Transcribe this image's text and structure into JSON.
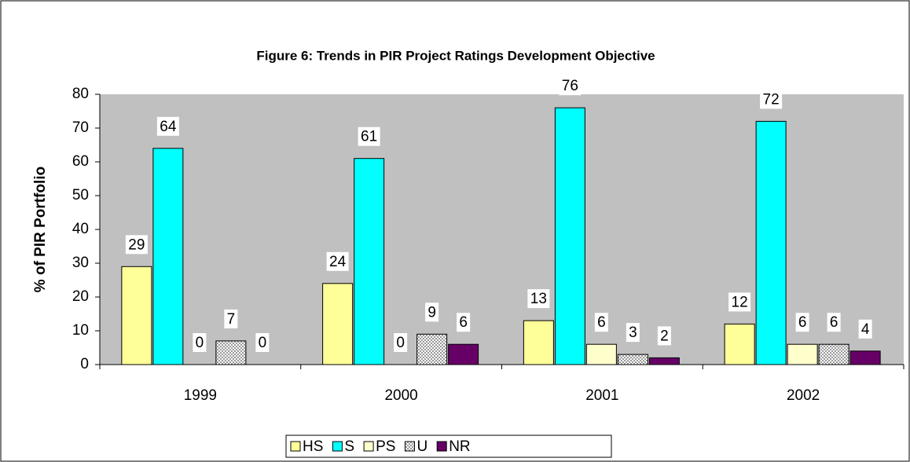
{
  "chart_data": {
    "type": "bar",
    "title": "Figure 6: Trends in PIR Project Ratings Development Objective",
    "y_label": "% of PIR Portfolio",
    "categories": [
      "1999",
      "2000",
      "2001",
      "2002"
    ],
    "series": [
      {
        "name": "HS",
        "color": "#ffff99",
        "values": [
          29,
          24,
          13,
          12
        ]
      },
      {
        "name": "S",
        "color": "#00ffff",
        "values": [
          64,
          61,
          76,
          72
        ]
      },
      {
        "name": "PS",
        "color": "#ffffcc",
        "values": [
          0,
          0,
          6,
          6
        ]
      },
      {
        "name": "U",
        "color": "#999999",
        "values": [
          7,
          9,
          3,
          6
        ]
      },
      {
        "name": "NR",
        "color": "#660066",
        "values": [
          0,
          6,
          2,
          4
        ]
      }
    ],
    "ylim": [
      0,
      80
    ],
    "yticks": [
      0,
      10,
      20,
      30,
      40,
      50,
      60,
      70,
      80
    ],
    "legend": "bottom"
  }
}
